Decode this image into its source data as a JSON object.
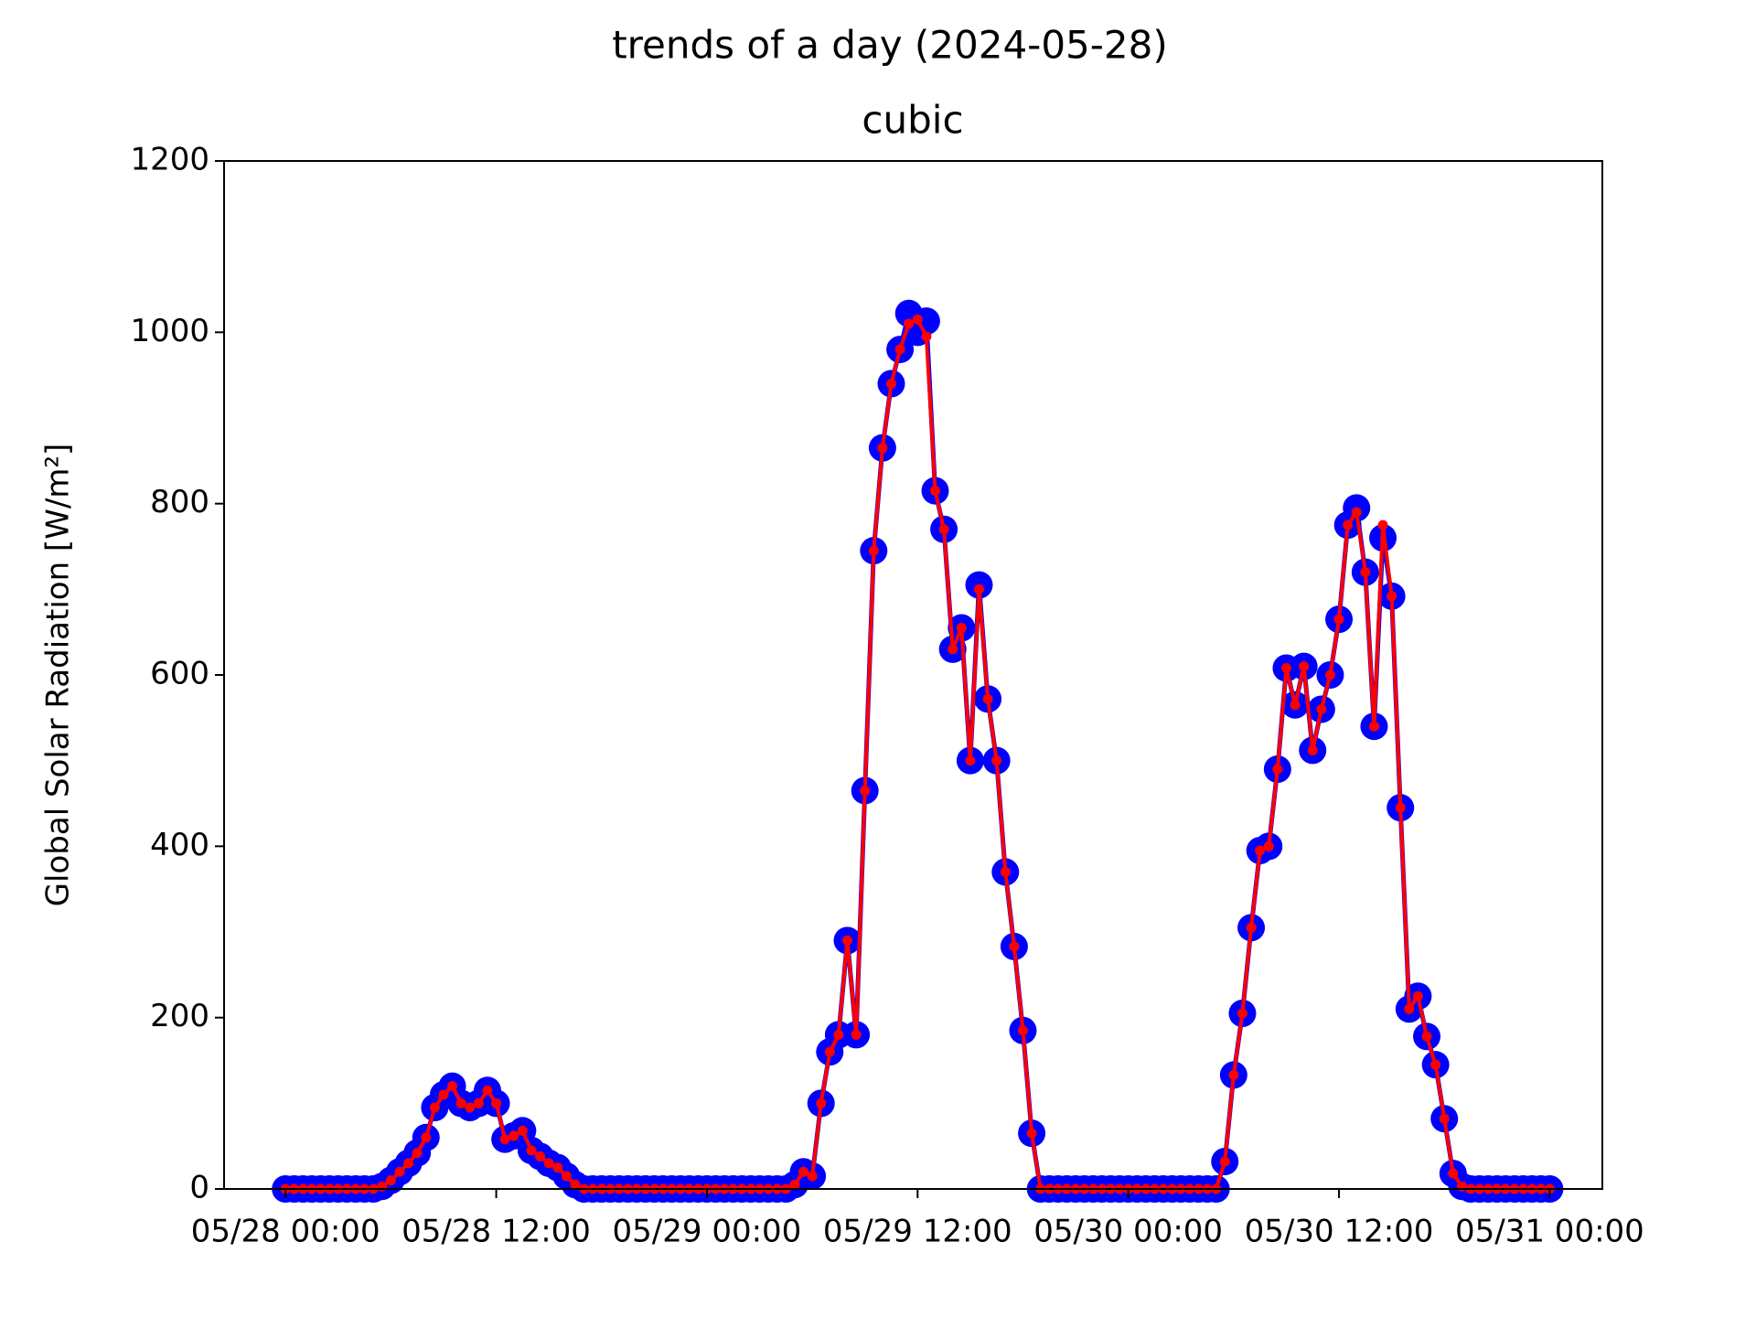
{
  "chart_data": {
    "type": "line",
    "title": "trends of a day (2024-05-28)",
    "subtitle": "cubic",
    "y_label": "Global Solar Radiation [W/m²]",
    "x": [
      "2024-05-28T00:00",
      "2024-05-28T00:30",
      "2024-05-28T01:00",
      "2024-05-28T01:30",
      "2024-05-28T02:00",
      "2024-05-28T02:30",
      "2024-05-28T03:00",
      "2024-05-28T03:30",
      "2024-05-28T04:00",
      "2024-05-28T04:30",
      "2024-05-28T05:00",
      "2024-05-28T05:30",
      "2024-05-28T06:00",
      "2024-05-28T06:30",
      "2024-05-28T07:00",
      "2024-05-28T07:30",
      "2024-05-28T08:00",
      "2024-05-28T08:30",
      "2024-05-28T09:00",
      "2024-05-28T09:30",
      "2024-05-28T10:00",
      "2024-05-28T10:30",
      "2024-05-28T11:00",
      "2024-05-28T11:30",
      "2024-05-28T12:00",
      "2024-05-28T12:30",
      "2024-05-28T13:00",
      "2024-05-28T13:30",
      "2024-05-28T14:00",
      "2024-05-28T14:30",
      "2024-05-28T15:00",
      "2024-05-28T15:30",
      "2024-05-28T16:00",
      "2024-05-28T16:30",
      "2024-05-28T17:00",
      "2024-05-28T17:30",
      "2024-05-28T18:00",
      "2024-05-28T18:30",
      "2024-05-28T19:00",
      "2024-05-28T19:30",
      "2024-05-28T20:00",
      "2024-05-28T20:30",
      "2024-05-28T21:00",
      "2024-05-28T21:30",
      "2024-05-28T22:00",
      "2024-05-28T22:30",
      "2024-05-28T23:00",
      "2024-05-28T23:30",
      "2024-05-29T00:00",
      "2024-05-29T00:30",
      "2024-05-29T01:00",
      "2024-05-29T01:30",
      "2024-05-29T02:00",
      "2024-05-29T02:30",
      "2024-05-29T03:00",
      "2024-05-29T03:30",
      "2024-05-29T04:00",
      "2024-05-29T04:30",
      "2024-05-29T05:00",
      "2024-05-29T05:30",
      "2024-05-29T06:00",
      "2024-05-29T06:30",
      "2024-05-29T07:00",
      "2024-05-29T07:30",
      "2024-05-29T08:00",
      "2024-05-29T08:30",
      "2024-05-29T09:00",
      "2024-05-29T09:30",
      "2024-05-29T10:00",
      "2024-05-29T10:30",
      "2024-05-29T11:00",
      "2024-05-29T11:30",
      "2024-05-29T12:00",
      "2024-05-29T12:30",
      "2024-05-29T13:00",
      "2024-05-29T13:30",
      "2024-05-29T14:00",
      "2024-05-29T14:30",
      "2024-05-29T15:00",
      "2024-05-29T15:30",
      "2024-05-29T16:00",
      "2024-05-29T16:30",
      "2024-05-29T17:00",
      "2024-05-29T17:30",
      "2024-05-29T18:00",
      "2024-05-29T18:30",
      "2024-05-29T19:00",
      "2024-05-29T19:30",
      "2024-05-29T20:00",
      "2024-05-29T20:30",
      "2024-05-29T21:00",
      "2024-05-29T21:30",
      "2024-05-29T22:00",
      "2024-05-29T22:30",
      "2024-05-29T23:00",
      "2024-05-29T23:30",
      "2024-05-30T00:00",
      "2024-05-30T00:30",
      "2024-05-30T01:00",
      "2024-05-30T01:30",
      "2024-05-30T02:00",
      "2024-05-30T02:30",
      "2024-05-30T03:00",
      "2024-05-30T03:30",
      "2024-05-30T04:00",
      "2024-05-30T04:30",
      "2024-05-30T05:00",
      "2024-05-30T05:30",
      "2024-05-30T06:00",
      "2024-05-30T06:30",
      "2024-05-30T07:00",
      "2024-05-30T07:30",
      "2024-05-30T08:00",
      "2024-05-30T08:30",
      "2024-05-30T09:00",
      "2024-05-30T09:30",
      "2024-05-30T10:00",
      "2024-05-30T10:30",
      "2024-05-30T11:00",
      "2024-05-30T11:30",
      "2024-05-30T12:00",
      "2024-05-30T12:30",
      "2024-05-30T13:00",
      "2024-05-30T13:30",
      "2024-05-30T14:00",
      "2024-05-30T14:30",
      "2024-05-30T15:00",
      "2024-05-30T15:30",
      "2024-05-30T16:00",
      "2024-05-30T16:30",
      "2024-05-30T17:00",
      "2024-05-30T17:30",
      "2024-05-30T18:00",
      "2024-05-30T18:30",
      "2024-05-30T19:00",
      "2024-05-30T19:30",
      "2024-05-30T20:00",
      "2024-05-30T20:30",
      "2024-05-30T21:00",
      "2024-05-30T21:30",
      "2024-05-30T22:00",
      "2024-05-30T22:30",
      "2024-05-30T23:00",
      "2024-05-30T23:30",
      "2024-05-31T00:00"
    ],
    "series": [
      {
        "color": "#0000ff",
        "values": [
          0,
          0,
          0,
          0,
          0,
          0,
          0,
          0,
          0,
          0,
          0,
          3,
          10,
          20,
          30,
          42,
          60,
          95,
          110,
          120,
          100,
          95,
          100,
          115,
          100,
          58,
          62,
          68,
          45,
          38,
          30,
          25,
          15,
          5,
          0,
          0,
          0,
          0,
          0,
          0,
          0,
          0,
          0,
          0,
          0,
          0,
          0,
          0,
          0,
          0,
          0,
          0,
          0,
          0,
          0,
          0,
          0,
          0,
          5,
          20,
          15,
          100,
          160,
          180,
          290,
          180,
          465,
          745,
          865,
          940,
          980,
          1022,
          1000,
          1013,
          815,
          770,
          630,
          655,
          500,
          705,
          572,
          500,
          370,
          283,
          185,
          65,
          0,
          0,
          0,
          0,
          0,
          0,
          0,
          0,
          0,
          0,
          0,
          0,
          0,
          0,
          0,
          0,
          0,
          0,
          0,
          0,
          0,
          32,
          133,
          205,
          305,
          395,
          400,
          490,
          608,
          565,
          610,
          512,
          560,
          600,
          665,
          775,
          795,
          720,
          540,
          760,
          692,
          445,
          210,
          225,
          178,
          145,
          82,
          18,
          3,
          0,
          0,
          0,
          0,
          0,
          0,
          0,
          0,
          0,
          0
        ]
      },
      {
        "color": "#ff0000",
        "values": [
          0,
          0,
          0,
          0,
          0,
          0,
          0,
          0,
          0,
          0,
          0,
          3,
          10,
          20,
          30,
          42,
          60,
          95,
          110,
          120,
          100,
          95,
          100,
          115,
          100,
          58,
          62,
          68,
          45,
          38,
          30,
          25,
          15,
          5,
          0,
          0,
          0,
          0,
          0,
          0,
          0,
          0,
          0,
          0,
          0,
          0,
          0,
          0,
          0,
          0,
          0,
          0,
          0,
          0,
          0,
          0,
          0,
          0,
          5,
          20,
          15,
          100,
          160,
          180,
          290,
          180,
          465,
          745,
          865,
          940,
          980,
          1010,
          1015,
          995,
          815,
          770,
          630,
          655,
          500,
          700,
          572,
          500,
          370,
          283,
          185,
          65,
          0,
          0,
          0,
          0,
          0,
          0,
          0,
          0,
          0,
          0,
          0,
          0,
          0,
          0,
          0,
          0,
          0,
          0,
          0,
          0,
          0,
          32,
          133,
          205,
          305,
          395,
          400,
          490,
          608,
          565,
          610,
          512,
          560,
          600,
          665,
          775,
          790,
          720,
          540,
          775,
          692,
          445,
          210,
          225,
          178,
          145,
          82,
          18,
          3,
          0,
          0,
          0,
          0,
          0,
          0,
          0,
          0,
          0,
          0
        ]
      }
    ],
    "xlim": [
      "2024-05-27T20:30",
      "2024-05-31T03:00"
    ],
    "xticks": [
      {
        "value": "2024-05-28T00:00",
        "label": "05/28 00:00"
      },
      {
        "value": "2024-05-28T12:00",
        "label": "05/28 12:00"
      },
      {
        "value": "2024-05-29T00:00",
        "label": "05/29 00:00"
      },
      {
        "value": "2024-05-29T12:00",
        "label": "05/29 12:00"
      },
      {
        "value": "2024-05-30T00:00",
        "label": "05/30 00:00"
      },
      {
        "value": "2024-05-30T12:00",
        "label": "05/30 12:00"
      },
      {
        "value": "2024-05-31T00:00",
        "label": "05/31 00:00"
      }
    ],
    "ylim": [
      0,
      1200
    ],
    "yticks": [
      0,
      200,
      400,
      600,
      800,
      1000,
      1200
    ],
    "grid": false
  }
}
